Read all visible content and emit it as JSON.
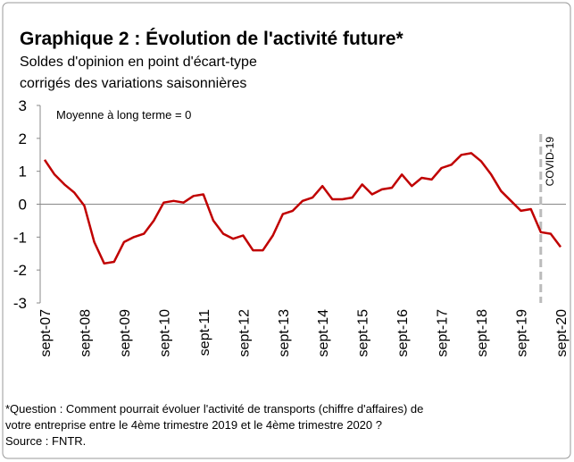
{
  "chart_data": {
    "type": "line",
    "title": "Graphique 2 : Évolution de l'activité future*",
    "subtitle": [
      "Soldes d'opinion en point d'écart-type",
      "corrigés des variations saisonnières"
    ],
    "annotations": [
      "Moyenne à long terme = 0",
      "COVID-19"
    ],
    "note": [
      "*Question : Comment pourrait évoluer l'activité de transports (chiffre d'affaires) de",
      "votre entreprise entre le 4ème trimestre 2019 et le 4ème trimestre 2020 ?"
    ],
    "source": "Source : FNTR.",
    "categories": [
      "sept-07",
      null,
      null,
      null,
      "sept-08",
      null,
      null,
      null,
      "sept-09",
      null,
      null,
      null,
      "sept-10",
      null,
      null,
      null,
      "sept-11",
      null,
      null,
      null,
      "sept-12",
      null,
      null,
      null,
      "sept-13",
      null,
      null,
      null,
      "sept-14",
      null,
      null,
      null,
      "sept-15",
      null,
      null,
      null,
      "sept-16",
      null,
      null,
      null,
      "sept-17",
      null,
      null,
      null,
      "sept-18",
      null,
      null,
      null,
      "sept-19",
      null,
      null,
      null,
      "sept-20"
    ],
    "series": [
      {
        "color": "#c00000",
        "values": [
          1.35,
          0.9,
          0.6,
          0.35,
          -0.05,
          -1.15,
          -1.8,
          -1.75,
          -1.15,
          -1.0,
          -0.9,
          -0.5,
          0.05,
          0.1,
          0.05,
          0.25,
          0.3,
          -0.5,
          -0.9,
          -1.05,
          -0.95,
          -1.4,
          -1.4,
          -0.95,
          -0.3,
          -0.2,
          0.1,
          0.2,
          0.55,
          0.15,
          0.15,
          0.2,
          0.6,
          0.3,
          0.45,
          0.5,
          0.9,
          0.55,
          0.8,
          0.75,
          1.1,
          1.2,
          1.5,
          1.55,
          1.3,
          0.9,
          0.4,
          0.1,
          -0.2,
          -0.15,
          -0.85,
          -0.9,
          -1.3
        ]
      }
    ],
    "ylim": [
      -3,
      3
    ],
    "yticks": [
      -3,
      -2,
      -1,
      0,
      1,
      2,
      3
    ]
  }
}
